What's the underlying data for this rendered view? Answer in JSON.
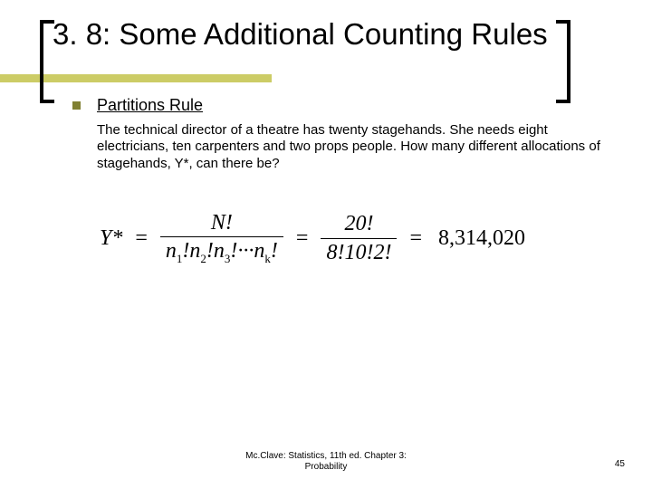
{
  "title": "3. 8: Some Additional Counting Rules",
  "accent_color": "#cccc66",
  "bullet_color": "#808033",
  "section_heading": "Partitions Rule",
  "problem_text": "The technical director of a theatre has twenty stagehands.  She needs eight electricians, ten carpenters and two props people.  How many different allocations of stagehands, Y*, can there be?",
  "formula": {
    "lhs": "Y*",
    "frac1_num": "N!",
    "frac1_den_parts": [
      "n",
      "1",
      "!",
      "n",
      "2",
      "!",
      "n",
      "3",
      "!···",
      "n",
      "k",
      "!"
    ],
    "frac2_num": "20!",
    "frac2_den": "8!10!2!",
    "result": "8,314,020"
  },
  "footer_line1": "Mc.Clave: Statistics, 11th ed. Chapter 3:",
  "footer_line2": "Probability",
  "page_number": "45"
}
